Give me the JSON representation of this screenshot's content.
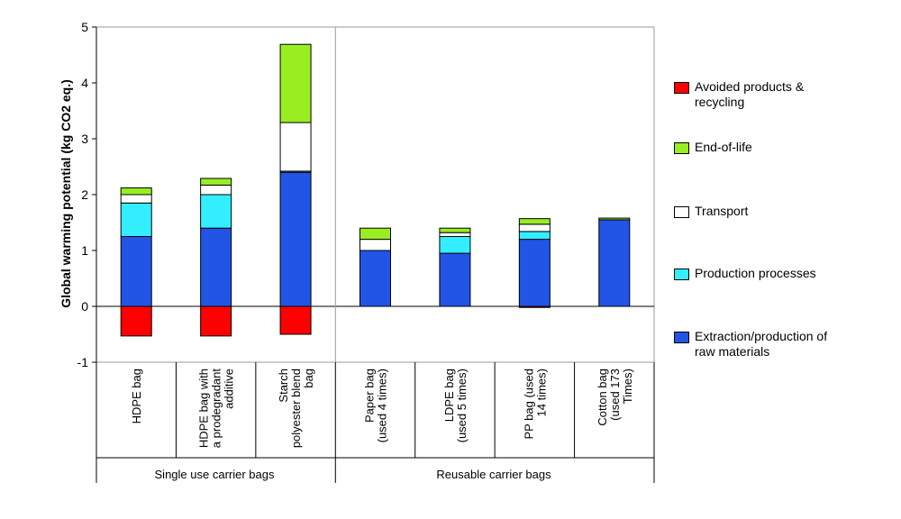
{
  "chart_data": {
    "type": "bar",
    "stacked": true,
    "ylabel": "Global warming potential (kg CO2 eq.)",
    "ylim": [
      -1,
      5
    ],
    "yticks": [
      "-1",
      "0",
      "1",
      "2",
      "3",
      "4",
      "5"
    ],
    "grid": false,
    "legend_position": "right",
    "categories": [
      "HDPE bag",
      "HDPE bag with a prodegradant additive",
      "Starch polyester blend bag",
      "Paper bag (used 4 times)",
      "LDPE bag (used 5 times)",
      "PP bag (used 14 times)",
      "Cotton bag (used 173 Times)"
    ],
    "category_lines": [
      [
        "HDPE bag"
      ],
      [
        "HDPE bag with",
        "a prodegradant",
        "additive"
      ],
      [
        "Starch",
        "polyester blend",
        "bag"
      ],
      [
        "Paper bag",
        "(used 4 times)"
      ],
      [
        "LDPE bag",
        "(used 5 times)"
      ],
      [
        "PP bag (used",
        "14 times)"
      ],
      [
        "Cotton bag",
        "(used 173",
        "Times)"
      ]
    ],
    "groups": [
      {
        "label": "Single use carrier bags",
        "categories": [
          0,
          1,
          2
        ]
      },
      {
        "label": "Reusable carrier bags",
        "categories": [
          3,
          4,
          5,
          6
        ]
      }
    ],
    "series": [
      {
        "name": "Avoided products & recycling",
        "color": "#ff0000",
        "values": [
          -0.53,
          -0.53,
          -0.5,
          0,
          0,
          -0.02,
          0
        ]
      },
      {
        "name": "Extraction/production of raw materials",
        "color": "#2255e6",
        "values": [
          1.25,
          1.4,
          2.4,
          1.0,
          0.95,
          1.2,
          1.55
        ]
      },
      {
        "name": "Production processes",
        "color": "#33eeff",
        "values": [
          0.6,
          0.6,
          0.02,
          0.0,
          0.3,
          0.14,
          0.0
        ]
      },
      {
        "name": "Transport",
        "color": "#ffffff",
        "values": [
          0.15,
          0.17,
          0.87,
          0.2,
          0.07,
          0.13,
          0.0
        ]
      },
      {
        "name": "End-of-life",
        "color": "#99ee22",
        "values": [
          0.12,
          0.12,
          1.4,
          0.2,
          0.08,
          0.1,
          0.03
        ]
      }
    ]
  },
  "legend": {
    "items": [
      {
        "label": "Avoided products & recycling",
        "color": "#ff0000"
      },
      {
        "label": "End-of-life",
        "color": "#99ee22"
      },
      {
        "label": "Transport",
        "color": "#ffffff"
      },
      {
        "label": "Production processes",
        "color": "#33eeff"
      },
      {
        "label": "Extraction/production of raw materials",
        "color": "#2255e6"
      }
    ]
  }
}
